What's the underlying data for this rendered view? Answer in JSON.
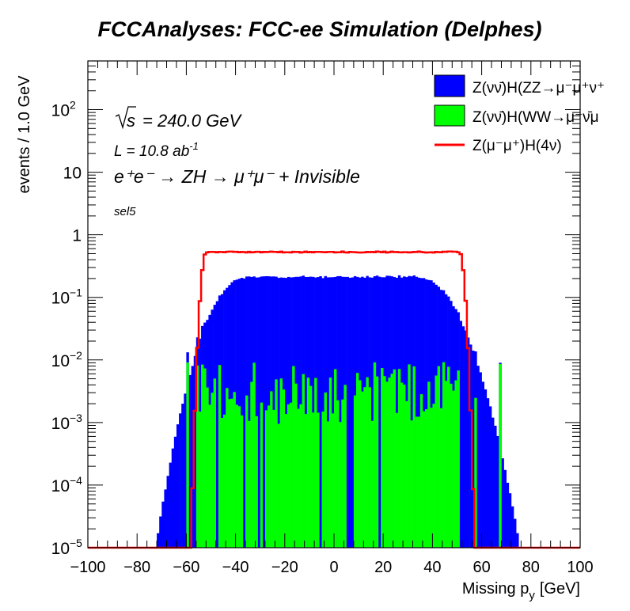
{
  "chart_data": {
    "type": "histogram",
    "title": "FCCAnalyses: FCC-ee Simulation (Delphes)",
    "xlabel": "Missing p",
    "xlabel_sub": "y",
    "xlabel_unit": "[GeV]",
    "ylabel": "events / 1.0 GeV",
    "xlim": [
      -100,
      100
    ],
    "ylim": [
      1e-05,
      600
    ],
    "yscale": "log",
    "grid": false,
    "legend_position": "top-right",
    "x_ticks": [
      "−100",
      "−80",
      "−60",
      "−40",
      "−20",
      "0",
      "20",
      "40",
      "60",
      "80",
      "100"
    ],
    "x_tick_values": [
      -100,
      -80,
      -60,
      -40,
      -20,
      0,
      20,
      40,
      60,
      80,
      100
    ],
    "y_ticks": [
      {
        "value": 1e-05,
        "base": "10",
        "exp": "−5"
      },
      {
        "value": 0.0001,
        "base": "10",
        "exp": "−4"
      },
      {
        "value": 0.001,
        "base": "10",
        "exp": "−3"
      },
      {
        "value": 0.01,
        "base": "10",
        "exp": "−2"
      },
      {
        "value": 0.1,
        "base": "10",
        "exp": "−1"
      },
      {
        "value": 1,
        "base": "1",
        "exp": ""
      },
      {
        "value": 10,
        "base": "10",
        "exp": ""
      },
      {
        "value": 100,
        "base": "10",
        "exp": "2"
      }
    ],
    "annotations": {
      "sqrt_s": "= 240.0 GeV",
      "lumi": "L = 10.8 ab",
      "lumi_exp": "-1",
      "process": "e⁺e⁻ → ZH → μ⁺μ⁻ + Invisible",
      "selection": "sel5"
    },
    "series": [
      {
        "name": "Z(νν̄)H(ZZ→μ⁻μ⁺ν⁺",
        "style": "stacked-fill",
        "color": "#0000ff",
        "shape": {
          "plateau": 0.21,
          "flat_from": -35,
          "flat_to": 33,
          "edge_low": -72,
          "edge_high": 75
        }
      },
      {
        "name": "Z(νν̄)H(WW→μ⁻ν̄μ",
        "style": "stacked-fill",
        "color": "#00ff00",
        "shape": {
          "typical": 0.003,
          "range": [
            -61,
            68
          ],
          "dense_range": [
            -55,
            50
          ]
        }
      },
      {
        "name": "Z(μ⁻μ⁺)H(4ν)",
        "style": "line",
        "color": "#ff0000",
        "shape": {
          "plateau": 0.53,
          "edge_low": -58,
          "edge_high": 57,
          "floor": 1e-05
        }
      }
    ]
  }
}
